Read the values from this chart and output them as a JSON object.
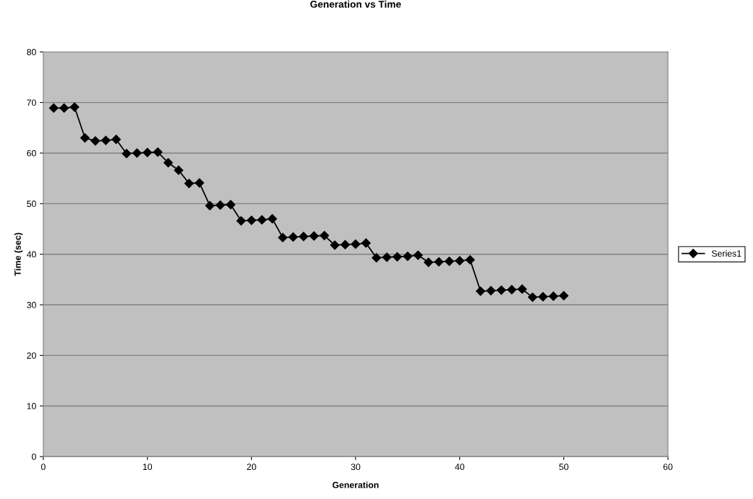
{
  "chart_data": {
    "type": "line",
    "title": "Generation vs Time",
    "xlabel": "Generation",
    "ylabel": "Time (sec)",
    "x": [
      1,
      2,
      3,
      4,
      5,
      6,
      7,
      8,
      9,
      10,
      11,
      12,
      13,
      14,
      15,
      16,
      17,
      18,
      19,
      20,
      21,
      22,
      23,
      24,
      25,
      26,
      27,
      28,
      29,
      30,
      31,
      32,
      33,
      34,
      35,
      36,
      37,
      38,
      39,
      40,
      41,
      42,
      43,
      44,
      45,
      46,
      47,
      48,
      49,
      50
    ],
    "series": [
      {
        "name": "Series1",
        "color": "#000000",
        "values": [
          68.9,
          68.9,
          69.1,
          63.0,
          62.4,
          62.5,
          62.7,
          59.9,
          60.0,
          60.1,
          60.2,
          58.1,
          56.6,
          54.0,
          54.1,
          49.6,
          49.7,
          49.8,
          46.6,
          46.7,
          46.8,
          47.0,
          43.3,
          43.4,
          43.5,
          43.6,
          43.7,
          41.8,
          41.9,
          42.0,
          42.2,
          39.3,
          39.4,
          39.5,
          39.6,
          39.8,
          38.4,
          38.5,
          38.6,
          38.7,
          38.9,
          32.7,
          32.8,
          32.9,
          33.0,
          33.1,
          31.5,
          31.6,
          31.7,
          31.8
        ]
      }
    ],
    "xlim": [
      0,
      60
    ],
    "xticks": [
      0,
      10,
      20,
      30,
      40,
      50,
      60
    ],
    "ylim": [
      0,
      80
    ],
    "yticks": [
      0,
      10,
      20,
      30,
      40,
      50,
      60,
      70,
      80
    ],
    "grid": "y",
    "legend": "right",
    "marker": "diamond",
    "line_style": "solid"
  }
}
